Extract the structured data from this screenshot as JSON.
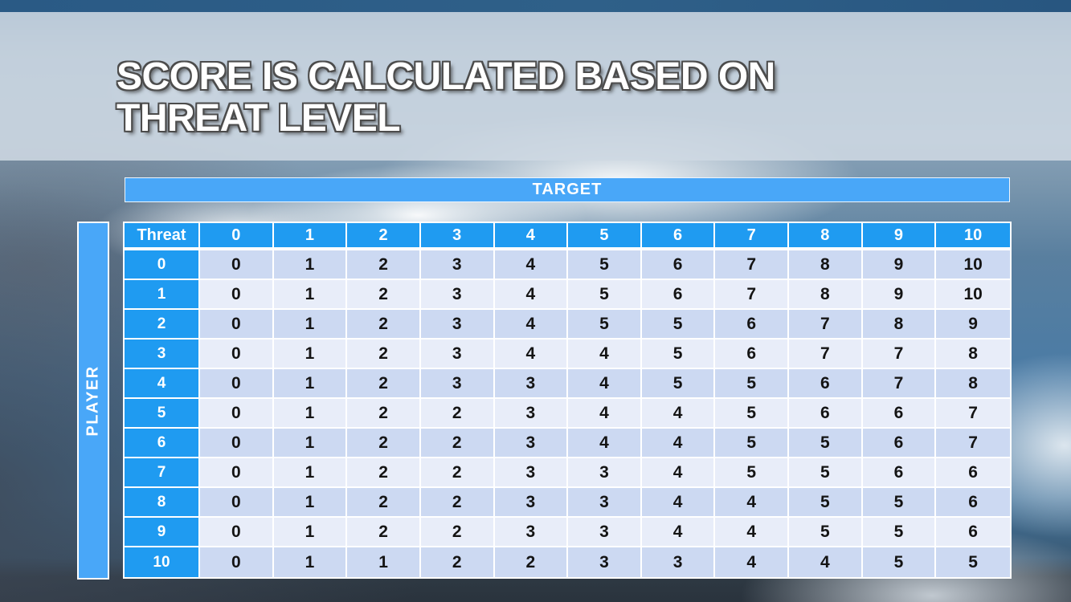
{
  "title": {
    "line1": "SCORE IS CALCULATED BASED ON",
    "line2": "THREAT LEVEL"
  },
  "chart_data": {
    "type": "table",
    "title": "Score is calculated based on threat level",
    "xlabel": "TARGET",
    "ylabel": "PLAYER",
    "corner_label": "Threat",
    "column_headers": [
      "0",
      "1",
      "2",
      "3",
      "4",
      "5",
      "6",
      "7",
      "8",
      "9",
      "10"
    ],
    "rows": [
      {
        "threat": "0",
        "values": [
          "0",
          "1",
          "2",
          "3",
          "4",
          "5",
          "6",
          "7",
          "8",
          "9",
          "10"
        ]
      },
      {
        "threat": "1",
        "values": [
          "0",
          "1",
          "2",
          "3",
          "4",
          "5",
          "6",
          "7",
          "8",
          "9",
          "10"
        ]
      },
      {
        "threat": "2",
        "values": [
          "0",
          "1",
          "2",
          "3",
          "4",
          "5",
          "5",
          "6",
          "7",
          "8",
          "9"
        ]
      },
      {
        "threat": "3",
        "values": [
          "0",
          "1",
          "2",
          "3",
          "4",
          "4",
          "5",
          "6",
          "7",
          "7",
          "8"
        ]
      },
      {
        "threat": "4",
        "values": [
          "0",
          "1",
          "2",
          "3",
          "3",
          "4",
          "5",
          "5",
          "6",
          "7",
          "8"
        ]
      },
      {
        "threat": "5",
        "values": [
          "0",
          "1",
          "2",
          "2",
          "3",
          "4",
          "4",
          "5",
          "6",
          "6",
          "7"
        ]
      },
      {
        "threat": "6",
        "values": [
          "0",
          "1",
          "2",
          "2",
          "3",
          "4",
          "4",
          "5",
          "5",
          "6",
          "7"
        ]
      },
      {
        "threat": "7",
        "values": [
          "0",
          "1",
          "2",
          "2",
          "3",
          "3",
          "4",
          "5",
          "5",
          "6",
          "6"
        ]
      },
      {
        "threat": "8",
        "values": [
          "0",
          "1",
          "2",
          "2",
          "3",
          "3",
          "4",
          "4",
          "5",
          "5",
          "6"
        ]
      },
      {
        "threat": "9",
        "values": [
          "0",
          "1",
          "2",
          "2",
          "3",
          "3",
          "4",
          "4",
          "5",
          "5",
          "6"
        ]
      },
      {
        "threat": "10",
        "values": [
          "0",
          "1",
          "1",
          "2",
          "2",
          "3",
          "3",
          "4",
          "4",
          "5",
          "5"
        ]
      }
    ]
  },
  "colors": {
    "header_blue": "#1f9bf1",
    "bar_blue": "#49a7f8",
    "row_dark": "#ccd9f2",
    "row_light": "#e8edf9",
    "grid_white": "#ffffff",
    "cell_text": "#141414"
  }
}
